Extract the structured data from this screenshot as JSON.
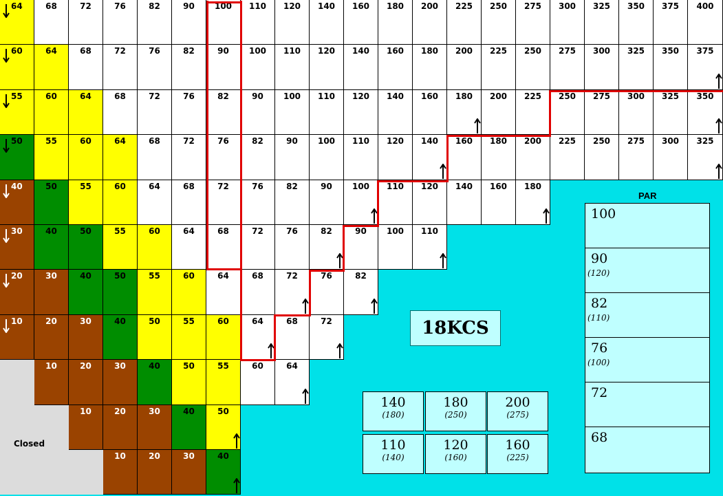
{
  "grid": {
    "rows": [
      [
        "64",
        "68",
        "72",
        "76",
        "82",
        "90",
        "100",
        "110",
        "120",
        "140",
        "160",
        "180",
        "200",
        "225",
        "250",
        "275",
        "300",
        "325",
        "350",
        "375",
        "400"
      ],
      [
        "60",
        "64",
        "68",
        "72",
        "76",
        "82",
        "90",
        "100",
        "110",
        "120",
        "140",
        "160",
        "180",
        "200",
        "225",
        "250",
        "275",
        "300",
        "325",
        "350",
        "375"
      ],
      [
        "55",
        "60",
        "64",
        "68",
        "72",
        "76",
        "82",
        "90",
        "100",
        "110",
        "120",
        "140",
        "160",
        "180",
        "200",
        "225",
        "250",
        "275",
        "300",
        "325",
        "350"
      ],
      [
        "50",
        "55",
        "60",
        "64",
        "68",
        "72",
        "76",
        "82",
        "90",
        "100",
        "110",
        "120",
        "140",
        "160",
        "180",
        "200",
        "225",
        "250",
        "275",
        "300",
        "325"
      ],
      [
        "40",
        "50",
        "55",
        "60",
        "64",
        "68",
        "72",
        "76",
        "82",
        "90",
        "100",
        "110",
        "120",
        "140",
        "160",
        "180"
      ],
      [
        "30",
        "40",
        "50",
        "55",
        "60",
        "64",
        "68",
        "72",
        "76",
        "82",
        "90",
        "100",
        "110"
      ],
      [
        "20",
        "30",
        "40",
        "50",
        "55",
        "60",
        "64",
        "68",
        "72",
        "76",
        "82"
      ],
      [
        "10",
        "20",
        "30",
        "40",
        "50",
        "55",
        "60",
        "64",
        "68",
        "72"
      ],
      [
        "",
        "10",
        "20",
        "30",
        "40",
        "50",
        "55",
        "60",
        "64"
      ],
      [
        "",
        "",
        "10",
        "20",
        "30",
        "40",
        "50"
      ],
      [
        "",
        "",
        "",
        "10",
        "20",
        "30",
        "40"
      ]
    ],
    "colors": [
      [
        "y",
        "w",
        "w",
        "w",
        "w",
        "w",
        "w",
        "w",
        "w",
        "w",
        "w",
        "w",
        "w",
        "w",
        "w",
        "w",
        "w",
        "w",
        "w",
        "w",
        "w"
      ],
      [
        "y",
        "y",
        "w",
        "w",
        "w",
        "w",
        "w",
        "w",
        "w",
        "w",
        "w",
        "w",
        "w",
        "w",
        "w",
        "w",
        "w",
        "w",
        "w",
        "w",
        "w"
      ],
      [
        "y",
        "y",
        "y",
        "w",
        "w",
        "w",
        "w",
        "w",
        "w",
        "w",
        "w",
        "w",
        "w",
        "w",
        "w",
        "w",
        "w",
        "w",
        "w",
        "w",
        "w"
      ],
      [
        "g",
        "y",
        "y",
        "y",
        "w",
        "w",
        "w",
        "w",
        "w",
        "w",
        "w",
        "w",
        "w",
        "w",
        "w",
        "w",
        "w",
        "w",
        "w",
        "w",
        "w"
      ],
      [
        "b",
        "g",
        "y",
        "y",
        "w",
        "w",
        "w",
        "w",
        "w",
        "w",
        "w",
        "w",
        "w",
        "w",
        "w",
        "w"
      ],
      [
        "b",
        "g",
        "g",
        "y",
        "y",
        "w",
        "w",
        "w",
        "w",
        "w",
        "w",
        "w",
        "w"
      ],
      [
        "b",
        "b",
        "g",
        "g",
        "y",
        "y",
        "w",
        "w",
        "w",
        "w",
        "w"
      ],
      [
        "b",
        "b",
        "b",
        "g",
        "y",
        "y",
        "y",
        "w",
        "w",
        "w"
      ],
      [
        "c",
        "b",
        "b",
        "b",
        "g",
        "y",
        "y",
        "w",
        "w"
      ],
      [
        "c",
        "c",
        "b",
        "b",
        "b",
        "g",
        "y"
      ],
      [
        "c",
        "c",
        "c",
        "b",
        "b",
        "b",
        "g"
      ]
    ],
    "palette": {
      "y": "#ffff00",
      "w": "#ffffff",
      "g": "#008d00",
      "b": "#9a4300",
      "c": "#dcdcdc",
      "boundary": "#e00000"
    },
    "down_arrow_rows": [
      0,
      1,
      2,
      3,
      4,
      5,
      6,
      7
    ],
    "up_arrows": [
      [
        1,
        20
      ],
      [
        2,
        13
      ],
      [
        2,
        20
      ],
      [
        3,
        12
      ],
      [
        3,
        20
      ],
      [
        4,
        10
      ],
      [
        4,
        15
      ],
      [
        5,
        9
      ],
      [
        5,
        12
      ],
      [
        6,
        8
      ],
      [
        6,
        10
      ],
      [
        7,
        7
      ],
      [
        7,
        9
      ],
      [
        8,
        8
      ],
      [
        9,
        6
      ],
      [
        10,
        6
      ]
    ],
    "closed_label": "Closed"
  },
  "par": {
    "title": "PAR",
    "items": [
      {
        "value": "100",
        "sub": ""
      },
      {
        "value": "90",
        "sub": "(120)"
      },
      {
        "value": "82",
        "sub": "(110)"
      },
      {
        "value": "76",
        "sub": "(100)"
      },
      {
        "value": "72",
        "sub": ""
      },
      {
        "value": "68",
        "sub": ""
      }
    ]
  },
  "kcs_label": "18KCS",
  "options": [
    {
      "value": "140",
      "sub": "(180)"
    },
    {
      "value": "180",
      "sub": "(250)"
    },
    {
      "value": "200",
      "sub": "(275)"
    },
    {
      "value": "110",
      "sub": "(140)"
    },
    {
      "value": "120",
      "sub": "(160)"
    },
    {
      "value": "160",
      "sub": "(225)"
    }
  ]
}
